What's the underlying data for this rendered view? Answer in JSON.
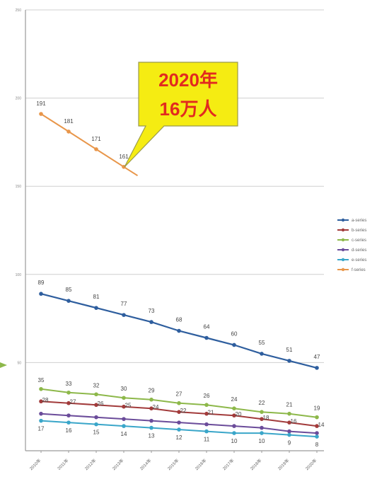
{
  "chart_data": {
    "type": "line",
    "y_axis": {
      "min": 0,
      "max": 250,
      "tick_step": 50,
      "tick_labels": [
        "",
        "50",
        "100",
        "150",
        "200",
        "250"
      ]
    },
    "grid": true,
    "x_categories": [
      "2010年",
      "2011年",
      "2012年",
      "2013年",
      "2014年",
      "2015年",
      "2016年",
      "2017年",
      "2018年",
      "2019年",
      "2020年"
    ],
    "legend": {
      "position": "right",
      "entries": [
        "a-series",
        "b-series",
        "c-series",
        "d-series",
        "e-series",
        "f-series"
      ]
    },
    "series": [
      {
        "key": "main",
        "name": "",
        "color": "#2E5E9E",
        "values": [
          89,
          85,
          81,
          77,
          73,
          68,
          64,
          60,
          55,
          51,
          47
        ]
      },
      {
        "key": "red",
        "name": "",
        "color": "#A23B3B",
        "values": [
          28,
          27,
          26,
          25,
          24,
          22,
          21,
          20,
          18,
          16,
          14
        ]
      },
      {
        "key": "green",
        "name": "",
        "color": "#8DB84A",
        "values": [
          35,
          33,
          32,
          30,
          29,
          27,
          26,
          24,
          22,
          21,
          19
        ]
      },
      {
        "key": "purple",
        "name": "",
        "color": "#6B4C9A",
        "values": [
          21,
          20,
          19,
          18,
          17,
          16,
          15,
          14,
          13,
          11,
          10
        ]
      },
      {
        "key": "teal",
        "name": "",
        "color": "#3AA6C9",
        "values": [
          17,
          16,
          15,
          14,
          13,
          12,
          11,
          10,
          10,
          9,
          8
        ]
      },
      {
        "key": "orange",
        "name": "",
        "color": "#E8964A",
        "values": [
          191,
          181,
          171,
          161,
          null,
          null,
          null,
          null,
          null,
          null,
          null
        ]
      }
    ],
    "data_labels": {
      "main": [
        "89",
        "85",
        "81",
        "77",
        "73",
        "68",
        "64",
        "60",
        "55",
        "51",
        "47"
      ],
      "green": [
        "35",
        "33",
        "32",
        "30",
        "29",
        "27",
        "26",
        "24",
        "22",
        "21",
        "19"
      ],
      "red": [
        "28",
        "27",
        "26",
        "25",
        "24",
        "22",
        "21",
        "20",
        "18",
        "16",
        "14"
      ],
      "teal": [
        "17",
        "16",
        "15",
        "14",
        "13",
        "12",
        "11",
        "10",
        "10",
        "9",
        "8"
      ],
      "orange": [
        "191",
        "181",
        "171",
        "161"
      ]
    },
    "callout": {
      "line1": "2020年",
      "line2": "16万人",
      "fill": "#F5EC12",
      "text_color": "#E22A1F",
      "border": "#9A9A4A"
    }
  },
  "colors": {
    "grid": "#CFCFCF",
    "axis": "#9A9A9A",
    "label": "#444444"
  }
}
